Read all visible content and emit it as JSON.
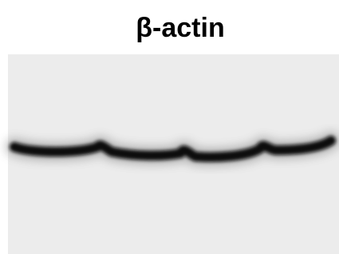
{
  "title": "β-actin"
}
